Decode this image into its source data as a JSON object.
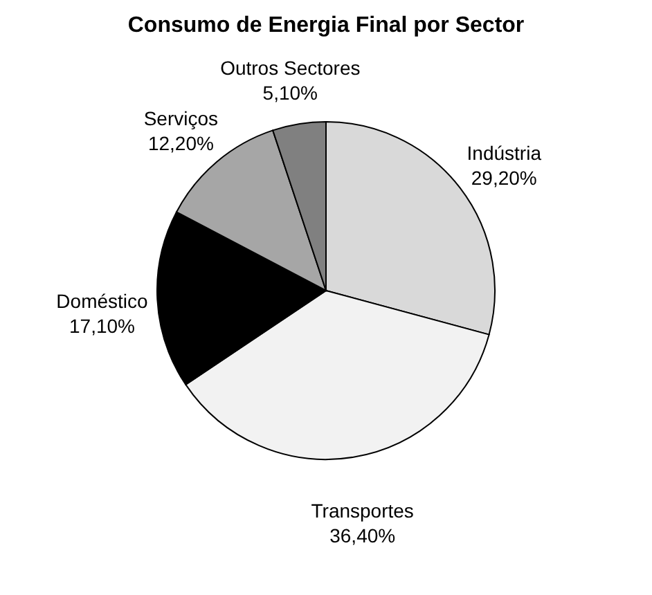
{
  "chart_data": {
    "type": "pie",
    "title": "Consumo de Energia Final por Sector",
    "categories": [
      "Indústria",
      "Transportes",
      "Doméstico",
      "Serviços",
      "Outros Sectores"
    ],
    "values": [
      29.2,
      36.4,
      17.1,
      12.2,
      5.1
    ],
    "value_labels": [
      "29,20%",
      "36,40%",
      "17,10%",
      "12,20%",
      "5,10%"
    ],
    "colors": [
      "#d9d9d9",
      "#f2f2f2",
      "#000000",
      "#a6a6a6",
      "#808080"
    ]
  }
}
